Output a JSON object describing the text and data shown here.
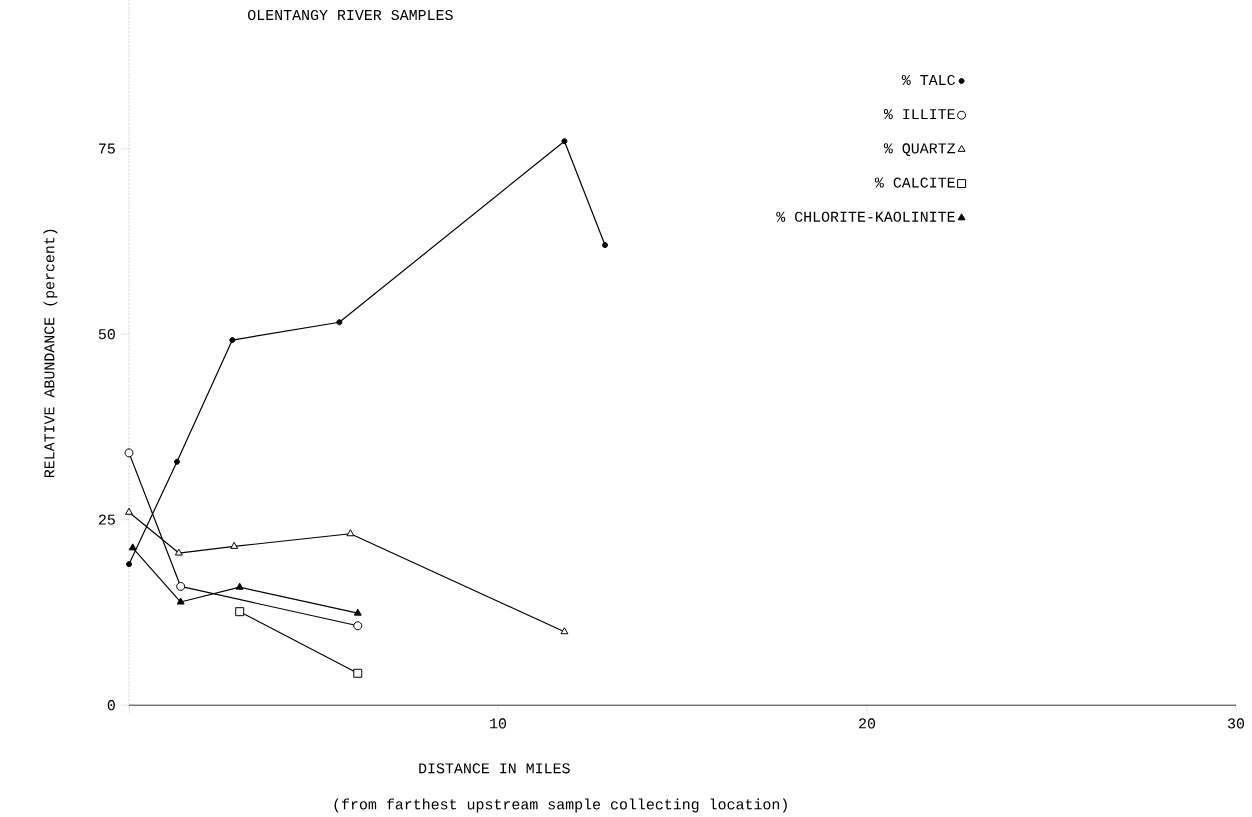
{
  "chart_data": {
    "type": "line",
    "title": "OLENTANGY RIVER SAMPLES",
    "xlabel": "DISTANCE IN MILES",
    "ylabel": "RELATIVE ABUNDANCE (percent)",
    "annotations": [
      "(from farthest upstream sample collecting location)"
    ],
    "xlim": [
      0,
      30
    ],
    "xticks": [
      {
        "value": 0,
        "label": null
      },
      10,
      20,
      30
    ],
    "ylim": [
      0,
      95
    ],
    "yticks": [
      0,
      25,
      50,
      75
    ],
    "grid": false,
    "legend": "top right",
    "line_style": "solid",
    "series": [
      {
        "name": "% TALC",
        "color": "#000000",
        "marker": "circle",
        "x": [
          0,
          1.3,
          2.8,
          5.7,
          11.8,
          12.9
        ],
        "values": [
          19,
          32.8,
          49.2,
          51.6,
          76,
          62
        ]
      },
      {
        "name": "% ILLITE",
        "color": "#000000",
        "marker": "circle",
        "x": [
          0,
          1.4,
          6.2
        ],
        "values": [
          34,
          16,
          10.7
        ]
      },
      {
        "name": "% QUARTZ",
        "color": "#000000",
        "marker": "triangle",
        "x": [
          0,
          1.35,
          2.85,
          6.0,
          11.8
        ],
        "values": [
          26,
          20.5,
          21.4,
          23.1,
          9.9
        ]
      },
      {
        "name": "% CALCITE",
        "color": "#000000",
        "marker": "square",
        "x": [
          3.0,
          6.2
        ],
        "values": [
          12.6,
          4.3
        ]
      },
      {
        "name": "% CHLORITE-KAOLINITE",
        "color": "#000000",
        "marker": "triangle",
        "x": [
          0.1,
          1.4,
          3.0,
          6.2
        ],
        "values": [
          21.2,
          13.9,
          15.9,
          12.4
        ]
      }
    ]
  }
}
